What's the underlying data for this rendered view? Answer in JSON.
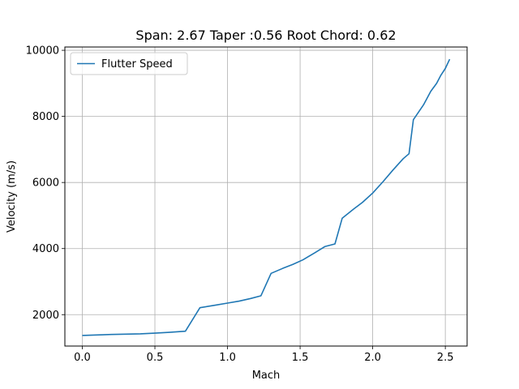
{
  "chart_data": {
    "type": "line",
    "title": "Span: 2.67 Taper :0.56 Root Chord: 0.62",
    "xlabel": "Mach",
    "ylabel": "Velocity (m/s)",
    "xlim": [
      -0.12,
      2.65
    ],
    "ylim": [
      1050,
      10100
    ],
    "xticks": [
      0.0,
      0.5,
      1.0,
      1.5,
      2.0,
      2.5
    ],
    "xtick_labels": [
      "0.0",
      "0.5",
      "1.0",
      "1.5",
      "2.0",
      "2.5"
    ],
    "yticks": [
      2000,
      4000,
      6000,
      8000,
      10000
    ],
    "ytick_labels": [
      "2000",
      "4000",
      "6000",
      "8000",
      "10000"
    ],
    "grid": true,
    "legend": {
      "placement": "upper-left",
      "entries": [
        "Flutter Speed"
      ]
    },
    "series": [
      {
        "name": "Flutter Speed",
        "color": "#1f77b4",
        "x": [
          0.0,
          0.1,
          0.2,
          0.3,
          0.4,
          0.5,
          0.6,
          0.71,
          0.81,
          0.92,
          1.0,
          1.08,
          1.16,
          1.23,
          1.3,
          1.38,
          1.45,
          1.52,
          1.6,
          1.67,
          1.74,
          1.79,
          1.87,
          1.93,
          2.0,
          2.07,
          2.14,
          2.21,
          2.25,
          2.28,
          2.35,
          2.4,
          2.44,
          2.47,
          2.5,
          2.53
        ],
        "y": [
          1370,
          1385,
          1400,
          1410,
          1420,
          1440,
          1465,
          1500,
          2210,
          2290,
          2350,
          2410,
          2490,
          2570,
          3250,
          3400,
          3520,
          3660,
          3870,
          4060,
          4140,
          4920,
          5200,
          5400,
          5680,
          6020,
          6380,
          6720,
          6870,
          7900,
          8350,
          8760,
          9000,
          9250,
          9450,
          9730
        ]
      }
    ]
  }
}
